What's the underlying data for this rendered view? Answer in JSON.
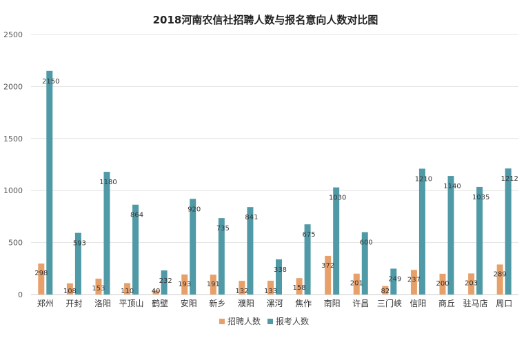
{
  "chart_data": {
    "type": "bar",
    "title": "2018河南农信社招聘人数与报名意向人数对比图",
    "categories": [
      "郑州",
      "开封",
      "洛阳",
      "平顶山",
      "鹤壁",
      "安阳",
      "新乡",
      "濮阳",
      "漯河",
      "焦作",
      "南阳",
      "许昌",
      "三门峡",
      "信阳",
      "商丘",
      "驻马店",
      "周口"
    ],
    "series": [
      {
        "name": "招聘人数",
        "color": "#e8a06a",
        "values": [
          298,
          108,
          153,
          110,
          40,
          193,
          191,
          132,
          133,
          158,
          372,
          201,
          82,
          237,
          200,
          203,
          289
        ]
      },
      {
        "name": "报考人数",
        "color": "#4f9aa6",
        "values": [
          2150,
          593,
          1180,
          864,
          232,
          920,
          735,
          841,
          338,
          675,
          1030,
          600,
          249,
          1210,
          1140,
          1035,
          1212
        ]
      }
    ],
    "yticks": [
      0,
      500,
      1000,
      1500,
      2000,
      2500
    ],
    "ylim": [
      0,
      2500
    ],
    "grid": true,
    "legend": "bottom"
  }
}
